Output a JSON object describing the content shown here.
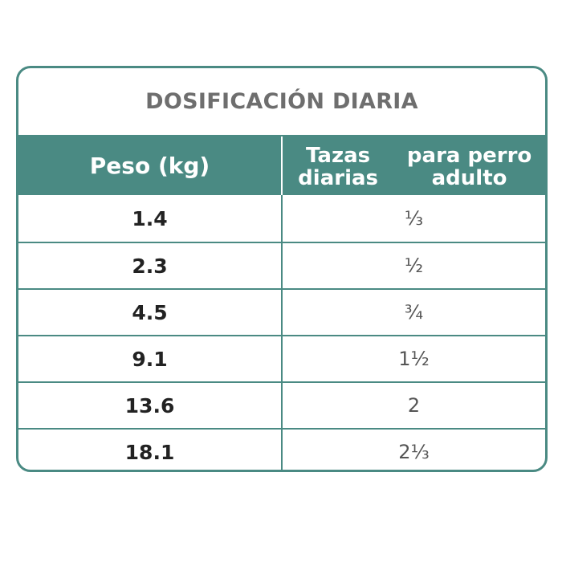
{
  "table": {
    "title": "DOSIFICACIÓN DIARIA",
    "header": {
      "col_weight": "Peso (kg)",
      "col_cups_line1": "Tazas diarias",
      "col_cups_line2": "para perro adulto"
    },
    "rows": [
      {
        "weight": "1.4",
        "cups": "⅓"
      },
      {
        "weight": "2.3",
        "cups": "½"
      },
      {
        "weight": "4.5",
        "cups": "¾"
      },
      {
        "weight": "9.1",
        "cups": "1½"
      },
      {
        "weight": "13.6",
        "cups": "2"
      },
      {
        "weight": "18.1",
        "cups": "2⅓"
      }
    ],
    "colors": {
      "accent": "#4a8a83",
      "title_text": "#6e6e6e",
      "weight_text": "#222222",
      "cups_text": "#555555"
    }
  }
}
